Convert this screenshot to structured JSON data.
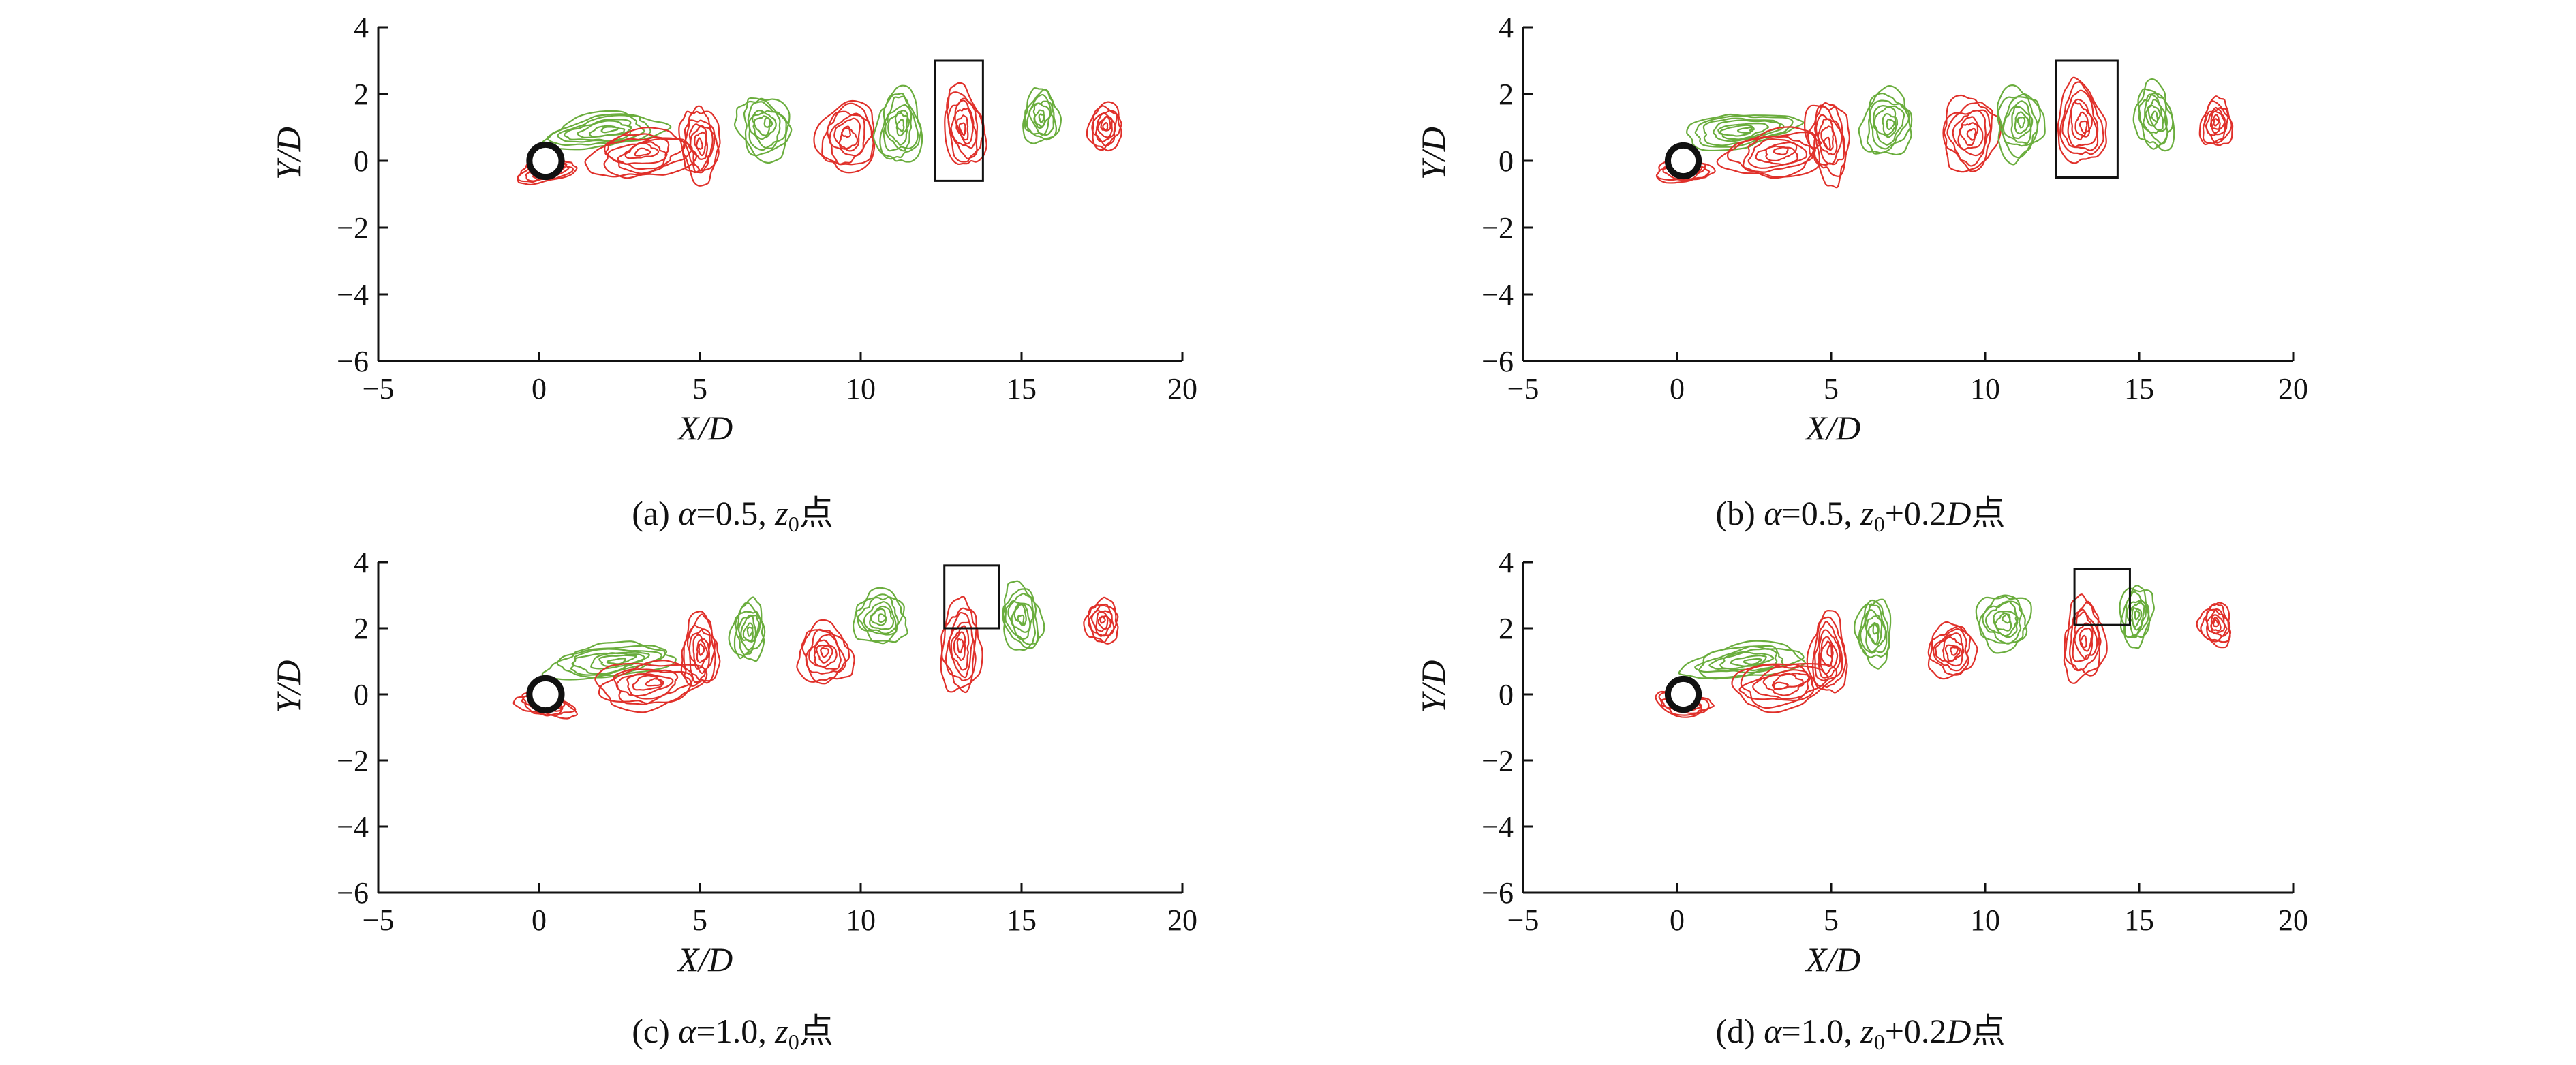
{
  "colors": {
    "red_vortex": "#e0302a",
    "green_vortex": "#6aad3d",
    "axis": "#111111",
    "box": "#111111"
  },
  "chart_data": [
    {
      "id": "a",
      "type": "contour",
      "xlabel": "X/D",
      "ylabel": "Y/D",
      "xlim": [
        -5,
        20
      ],
      "ylim": [
        -6,
        4
      ],
      "xticks": [
        "−5",
        "0",
        "5",
        "10",
        "15",
        "20"
      ],
      "yticks": [
        "−6",
        "−4",
        "−2",
        "0",
        "2",
        "4"
      ],
      "caption": {
        "prefix": "(a) ",
        "alpha": "α",
        "eq": "=0.5, ",
        "z": "z",
        "sub": "0",
        "rest": "点"
      },
      "highlight_box": {
        "x": [
          12.3,
          13.8
        ],
        "y": [
          -0.6,
          3.0
        ]
      },
      "vortices": [
        {
          "sign": "neg",
          "x": 0.2,
          "y": -0.3,
          "w": 1.8,
          "h": 0.7
        },
        {
          "sign": "pos",
          "x": 2.0,
          "y": 0.9,
          "w": 3.6,
          "h": 1.0
        },
        {
          "sign": "neg",
          "x": 3.2,
          "y": 0.2,
          "w": 3.2,
          "h": 1.4
        },
        {
          "sign": "neg",
          "x": 5.0,
          "y": 0.5,
          "w": 1.2,
          "h": 2.2
        },
        {
          "sign": "pos",
          "x": 7.0,
          "y": 1.0,
          "w": 1.6,
          "h": 1.9
        },
        {
          "sign": "neg",
          "x": 9.6,
          "y": 0.7,
          "w": 1.8,
          "h": 2.1
        },
        {
          "sign": "pos",
          "x": 11.2,
          "y": 1.0,
          "w": 1.4,
          "h": 2.2
        },
        {
          "sign": "neg",
          "x": 13.2,
          "y": 1.0,
          "w": 1.2,
          "h": 2.4
        },
        {
          "sign": "pos",
          "x": 15.6,
          "y": 1.3,
          "w": 1.1,
          "h": 1.6
        },
        {
          "sign": "neg",
          "x": 17.6,
          "y": 1.0,
          "w": 1.0,
          "h": 1.4
        }
      ]
    },
    {
      "id": "b",
      "type": "contour",
      "xlabel": "X/D",
      "ylabel": "Y/D",
      "xlim": [
        -5,
        20
      ],
      "ylim": [
        -6,
        4
      ],
      "xticks": [
        "−5",
        "0",
        "5",
        "10",
        "15",
        "20"
      ],
      "yticks": [
        "−6",
        "−4",
        "−2",
        "0",
        "2",
        "4"
      ],
      "caption": {
        "prefix": "(b) ",
        "alpha": "α",
        "eq": "=0.5, ",
        "z": "z",
        "sub": "0",
        "rest": "+0.2",
        "D": "D",
        "rest2": "点"
      },
      "highlight_box": {
        "x": [
          12.3,
          14.3
        ],
        "y": [
          -0.5,
          3.0
        ]
      },
      "vortices": [
        {
          "sign": "neg",
          "x": 0.2,
          "y": -0.3,
          "w": 1.8,
          "h": 0.7
        },
        {
          "sign": "pos",
          "x": 2.0,
          "y": 0.9,
          "w": 3.6,
          "h": 1.0
        },
        {
          "sign": "neg",
          "x": 3.2,
          "y": 0.2,
          "w": 3.2,
          "h": 1.4
        },
        {
          "sign": "neg",
          "x": 4.9,
          "y": 0.6,
          "w": 1.3,
          "h": 2.4
        },
        {
          "sign": "pos",
          "x": 6.8,
          "y": 1.1,
          "w": 1.6,
          "h": 2.0
        },
        {
          "sign": "neg",
          "x": 9.5,
          "y": 0.8,
          "w": 1.8,
          "h": 2.2
        },
        {
          "sign": "pos",
          "x": 11.1,
          "y": 1.1,
          "w": 1.5,
          "h": 2.1
        },
        {
          "sign": "neg",
          "x": 13.1,
          "y": 1.1,
          "w": 1.5,
          "h": 2.4
        },
        {
          "sign": "pos",
          "x": 15.5,
          "y": 1.3,
          "w": 1.2,
          "h": 2.0
        },
        {
          "sign": "neg",
          "x": 17.5,
          "y": 1.1,
          "w": 1.0,
          "h": 1.4
        }
      ]
    },
    {
      "id": "c",
      "type": "contour",
      "xlabel": "X/D",
      "ylabel": "Y/D",
      "xlim": [
        -5,
        20
      ],
      "ylim": [
        -6,
        4
      ],
      "xticks": [
        "−5",
        "0",
        "5",
        "10",
        "15",
        "20"
      ],
      "yticks": [
        "−6",
        "−4",
        "−2",
        "0",
        "2",
        "4"
      ],
      "caption": {
        "prefix": "(c) ",
        "alpha": "α",
        "eq": "=1.0, ",
        "z": "z",
        "sub": "0",
        "rest": "点"
      },
      "highlight_box": {
        "x": [
          12.6,
          14.3
        ],
        "y": [
          2.0,
          3.9
        ]
      },
      "vortices": [
        {
          "sign": "neg",
          "x": 0.2,
          "y": -0.3,
          "w": 1.8,
          "h": 0.7
        },
        {
          "sign": "pos",
          "x": 2.2,
          "y": 1.0,
          "w": 3.8,
          "h": 1.0
        },
        {
          "sign": "neg",
          "x": 3.4,
          "y": 0.3,
          "w": 3.2,
          "h": 1.4
        },
        {
          "sign": "neg",
          "x": 5.0,
          "y": 1.3,
          "w": 1.1,
          "h": 2.2
        },
        {
          "sign": "pos",
          "x": 6.5,
          "y": 1.9,
          "w": 1.0,
          "h": 1.8
        },
        {
          "sign": "neg",
          "x": 8.9,
          "y": 1.2,
          "w": 1.6,
          "h": 1.8
        },
        {
          "sign": "pos",
          "x": 10.6,
          "y": 2.3,
          "w": 1.6,
          "h": 1.6
        },
        {
          "sign": "neg",
          "x": 13.1,
          "y": 1.4,
          "w": 1.2,
          "h": 2.8
        },
        {
          "sign": "pos",
          "x": 15.0,
          "y": 2.3,
          "w": 1.2,
          "h": 2.0
        },
        {
          "sign": "neg",
          "x": 17.5,
          "y": 2.2,
          "w": 1.0,
          "h": 1.3
        }
      ]
    },
    {
      "id": "d",
      "type": "contour",
      "xlabel": "X/D",
      "ylabel": "Y/D",
      "xlim": [
        -5,
        20
      ],
      "ylim": [
        -6,
        4
      ],
      "xticks": [
        "−5",
        "0",
        "5",
        "10",
        "15",
        "20"
      ],
      "yticks": [
        "−6",
        "−4",
        "−2",
        "0",
        "2",
        "4"
      ],
      "caption": {
        "prefix": "(d) ",
        "alpha": "α",
        "eq": "=1.0, ",
        "z": "z",
        "sub": "0",
        "rest": "+0.2",
        "D": "D",
        "rest2": "点"
      },
      "highlight_box": {
        "x": [
          12.9,
          14.7
        ],
        "y": [
          2.1,
          3.8
        ]
      },
      "vortices": [
        {
          "sign": "neg",
          "x": 0.2,
          "y": -0.3,
          "w": 1.8,
          "h": 0.7
        },
        {
          "sign": "pos",
          "x": 2.2,
          "y": 1.0,
          "w": 3.8,
          "h": 1.0
        },
        {
          "sign": "neg",
          "x": 3.4,
          "y": 0.3,
          "w": 3.2,
          "h": 1.4
        },
        {
          "sign": "neg",
          "x": 4.9,
          "y": 1.2,
          "w": 1.2,
          "h": 2.4
        },
        {
          "sign": "pos",
          "x": 6.4,
          "y": 1.9,
          "w": 1.1,
          "h": 2.0
        },
        {
          "sign": "neg",
          "x": 8.9,
          "y": 1.3,
          "w": 1.5,
          "h": 1.6
        },
        {
          "sign": "pos",
          "x": 10.6,
          "y": 2.2,
          "w": 1.7,
          "h": 1.7
        },
        {
          "sign": "neg",
          "x": 13.2,
          "y": 1.6,
          "w": 1.3,
          "h": 2.4
        },
        {
          "sign": "pos",
          "x": 14.9,
          "y": 2.4,
          "w": 1.0,
          "h": 1.8
        },
        {
          "sign": "neg",
          "x": 17.5,
          "y": 2.1,
          "w": 1.0,
          "h": 1.3
        }
      ]
    }
  ]
}
